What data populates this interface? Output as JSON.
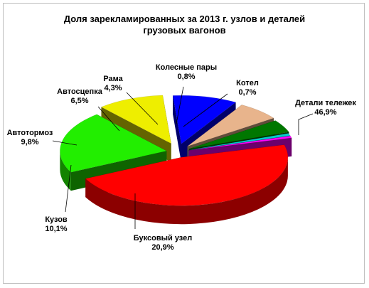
{
  "chart_data": {
    "type": "pie",
    "title": "Доля  зарекламированных за 2013 г. узлов и деталей\nгрузовых вагонов",
    "slices": [
      {
        "name": "Детали тележек",
        "value": 46.9,
        "value_label": "46,9%",
        "color": "#ff0000"
      },
      {
        "name": "Буксовый узел",
        "value": 20.9,
        "value_label": "20,9%",
        "color": "#22ee00"
      },
      {
        "name": "Кузов",
        "value": 10.1,
        "value_label": "10,1%",
        "color": "#eeee00"
      },
      {
        "name": "Автотормоз",
        "value": 9.8,
        "value_label": "9,8%",
        "color": "#0000ff"
      },
      {
        "name": "Автосцепка",
        "value": 6.5,
        "value_label": "6,5%",
        "color": "#e8b48c"
      },
      {
        "name": "Рама",
        "value": 4.3,
        "value_label": "4,3%",
        "color": "#007700"
      },
      {
        "name": "Колесные пары",
        "value": 0.8,
        "value_label": "0,8%",
        "color": "#00cccc"
      },
      {
        "name": "Котел",
        "value": 0.7,
        "value_label": "0,7%",
        "color": "#ff00ff"
      }
    ],
    "style": "3d-exploded",
    "legend": "none"
  }
}
